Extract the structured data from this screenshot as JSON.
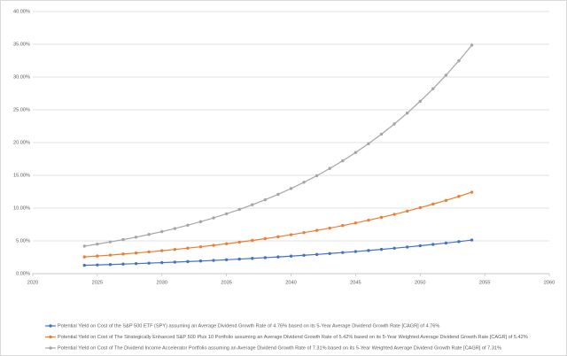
{
  "chart_data": {
    "type": "line",
    "x": [
      2024,
      2025,
      2026,
      2027,
      2028,
      2029,
      2030,
      2031,
      2032,
      2033,
      2034,
      2035,
      2036,
      2037,
      2038,
      2039,
      2040,
      2041,
      2042,
      2043,
      2044,
      2045,
      2046,
      2047,
      2048,
      2049,
      2050,
      2051,
      2052,
      2053,
      2054
    ],
    "xlim": [
      2020,
      2060
    ],
    "xticks": [
      2020,
      2025,
      2030,
      2035,
      2040,
      2045,
      2050,
      2055,
      2060
    ],
    "ylim": [
      0,
      40
    ],
    "yticks": [
      {
        "value": 0,
        "label": "0.00%"
      },
      {
        "value": 5,
        "label": "5.00%"
      },
      {
        "value": 10,
        "label": "10.00%"
      },
      {
        "value": 15,
        "label": "15.00%"
      },
      {
        "value": 20,
        "label": "20.00%"
      },
      {
        "value": 25,
        "label": "25.00%"
      },
      {
        "value": 30,
        "label": "30.00%"
      },
      {
        "value": 35,
        "label": "35.00%"
      },
      {
        "value": 40,
        "label": "40.00%"
      }
    ],
    "grid": true,
    "legend": "bottom",
    "series": [
      {
        "name": "Potential Yield on Cost of the S&P 500 ETF (SPY) assuming an Average Dividend Growth Rate of 4.76% based on its 5-Year Average Dividend Growth Rate [CAGR] of 4.76%",
        "color": "#4472c4",
        "values": [
          1.27,
          1.33,
          1.39,
          1.46,
          1.53,
          1.6,
          1.68,
          1.76,
          1.84,
          1.93,
          2.02,
          2.12,
          2.22,
          2.33,
          2.44,
          2.55,
          2.67,
          2.8,
          2.93,
          3.07,
          3.22,
          3.37,
          3.53,
          3.7,
          3.88,
          4.06,
          4.26,
          4.46,
          4.67,
          4.89,
          5.13
        ]
      },
      {
        "name": "Potential Yield on Cost of The Strategically Enhanced S&P 500 Plus 10 Portfolio assuming an Average Dividend Growth Rate of 5.42% based on its 5-Year Weighted Average Dividend Growth Rate [CAGR] of 5.42%",
        "color": "#ed7d31",
        "values": [
          2.55,
          2.69,
          2.83,
          2.99,
          3.15,
          3.32,
          3.5,
          3.69,
          3.89,
          4.1,
          4.32,
          4.56,
          4.81,
          5.07,
          5.34,
          5.63,
          5.94,
          6.26,
          6.6,
          6.95,
          7.33,
          7.73,
          8.15,
          8.59,
          9.05,
          9.54,
          10.06,
          10.61,
          11.18,
          11.79,
          12.43
        ]
      },
      {
        "name": "Potential Yield on Cost of The Dividend Income Accelerator Portfolio assuming an Average Dividend Growth Rate of 7.31% based on its 5-Year Weighted Average Dividend Growth Rate [CAGR] of 7.31%",
        "color": "#a5a5a5",
        "values": [
          4.2,
          4.51,
          4.84,
          5.19,
          5.57,
          5.98,
          6.41,
          6.88,
          7.39,
          7.93,
          8.5,
          9.13,
          9.79,
          10.51,
          11.28,
          12.1,
          12.99,
          13.94,
          14.95,
          16.05,
          17.22,
          18.48,
          19.83,
          21.28,
          22.84,
          24.5,
          26.3,
          28.22,
          30.28,
          32.49,
          34.87
        ]
      }
    ]
  }
}
